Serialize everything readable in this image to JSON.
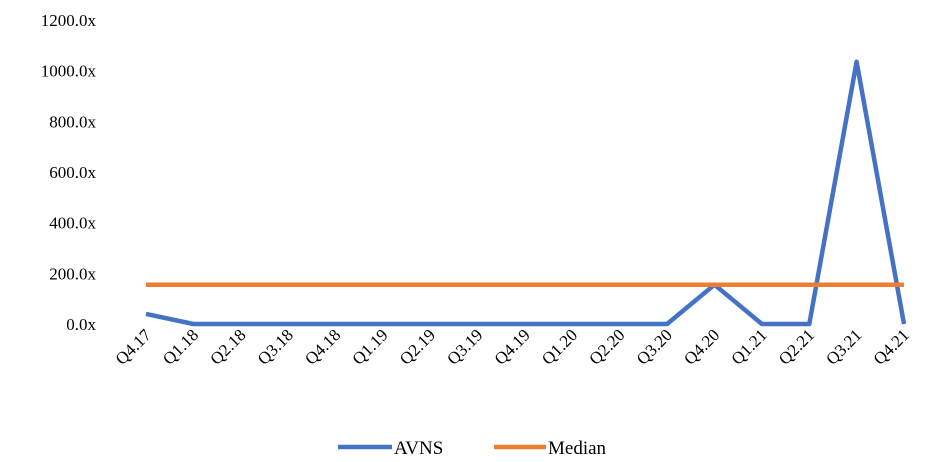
{
  "chart_data": {
    "type": "line",
    "title": "",
    "xlabel": "",
    "ylabel": "",
    "categories": [
      "Q4.17",
      "Q1.18",
      "Q2.18",
      "Q3.18",
      "Q4.18",
      "Q1.19",
      "Q2.19",
      "Q3.19",
      "Q4.19",
      "Q1.20",
      "Q2.20",
      "Q3.20",
      "Q4.20",
      "Q1.21",
      "Q2.21",
      "Q3.21",
      "Q4.21"
    ],
    "y_ticks": [
      "0.0x",
      "200.0x",
      "400.0x",
      "600.0x",
      "800.0x",
      "1000.0x",
      "1200.0x"
    ],
    "ylim": [
      0,
      1200
    ],
    "grid": false,
    "legend_position": "bottom",
    "series": [
      {
        "name": "AVNS",
        "color": "#4472C4",
        "values": [
          40,
          0,
          0,
          0,
          0,
          0,
          0,
          0,
          0,
          0,
          0,
          0,
          155,
          0,
          0,
          1035,
          0
        ]
      },
      {
        "name": "Median",
        "color": "#ED7D31",
        "values": [
          155,
          155,
          155,
          155,
          155,
          155,
          155,
          155,
          155,
          155,
          155,
          155,
          155,
          155,
          155,
          155,
          155
        ]
      }
    ]
  }
}
